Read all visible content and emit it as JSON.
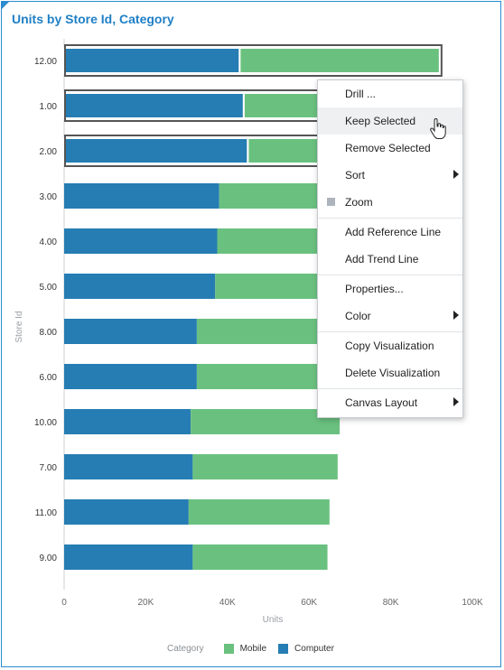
{
  "chart_data": {
    "type": "bar",
    "orientation": "horizontal",
    "stacked": true,
    "title": "Units by Store Id, Category",
    "xlabel": "Units",
    "ylabel": "Store Id",
    "categories": [
      "12.00",
      "1.00",
      "2.00",
      "3.00",
      "4.00",
      "5.00",
      "8.00",
      "6.00",
      "10.00",
      "7.00",
      "11.00",
      "9.00"
    ],
    "series": [
      {
        "name": "Computer",
        "color": "#267db3",
        "values": [
          43000,
          44000,
          45000,
          38000,
          37500,
          37000,
          32500,
          32500,
          31000,
          31500,
          30500,
          31500
        ]
      },
      {
        "name": "Mobile",
        "color": "#6ac17f",
        "values": [
          49000,
          47000,
          44000,
          46000,
          46000,
          44000,
          36000,
          36000,
          36500,
          35500,
          34500,
          33000
        ]
      }
    ],
    "selected_categories": [
      "12.00",
      "1.00",
      "2.00"
    ],
    "xlim": [
      0,
      100000
    ],
    "xticks": [
      "0",
      "20K",
      "40K",
      "60K",
      "80K",
      "100K"
    ],
    "grid": false,
    "legend": {
      "title": "Category",
      "position": "bottom",
      "entries": [
        "Mobile",
        "Computer"
      ]
    }
  },
  "context_menu": {
    "items": [
      {
        "label": "Drill ...",
        "submenu": false
      },
      {
        "label": "Keep Selected",
        "submenu": false,
        "hover": true
      },
      {
        "label": "Remove Selected",
        "submenu": false
      },
      {
        "label": "Sort",
        "submenu": true
      },
      {
        "label": "Zoom",
        "submenu": false,
        "icon": "zoom-icon"
      },
      {
        "label": "Add Reference Line",
        "submenu": false
      },
      {
        "label": "Add Trend Line",
        "submenu": false
      },
      {
        "label": "Properties...",
        "submenu": false
      },
      {
        "label": "Color",
        "submenu": true
      },
      {
        "label": "Copy Visualization",
        "submenu": false
      },
      {
        "label": "Delete Visualization",
        "submenu": false
      },
      {
        "label": "Canvas Layout",
        "submenu": true
      }
    ]
  },
  "colors": {
    "accent": "#1f7fc6",
    "computer": "#267db3",
    "mobile": "#6ac17f"
  }
}
